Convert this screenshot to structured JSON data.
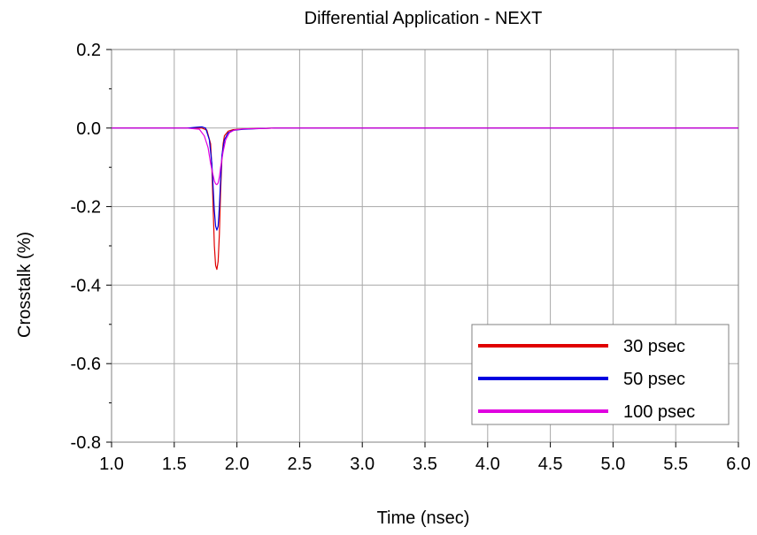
{
  "chart_data": {
    "type": "line",
    "title": "Differential Application - NEXT",
    "xlabel": "Time (nsec)",
    "ylabel": "Crosstalk (%)",
    "xlim": [
      1.0,
      6.0
    ],
    "ylim": [
      -0.8,
      0.2
    ],
    "xticks": [
      "1.0",
      "1.5",
      "2.0",
      "2.5",
      "3.0",
      "3.5",
      "4.0",
      "4.5",
      "5.0",
      "5.5",
      "6.0"
    ],
    "yticks": [
      "0.2",
      "0.0",
      "-0.2",
      "-0.4",
      "-0.6",
      "-0.8"
    ],
    "grid": true,
    "legend_position": "bottom-right",
    "series": [
      {
        "name": "30 psec",
        "color": "#e00000",
        "x": [
          1.0,
          1.6,
          1.68,
          1.72,
          1.76,
          1.79,
          1.8,
          1.81,
          1.82,
          1.83,
          1.84,
          1.85,
          1.86,
          1.87,
          1.88,
          1.89,
          1.9,
          1.93,
          1.97,
          2.05,
          2.2,
          2.3,
          6.0
        ],
        "y": [
          0.0,
          0.0,
          0.0,
          0.0,
          -0.005,
          -0.04,
          -0.1,
          -0.2,
          -0.3,
          -0.35,
          -0.36,
          -0.34,
          -0.27,
          -0.16,
          -0.08,
          -0.04,
          -0.02,
          -0.008,
          -0.004,
          -0.002,
          -0.001,
          0.0,
          0.0
        ]
      },
      {
        "name": "50 psec",
        "color": "#0000e0",
        "x": [
          1.0,
          1.6,
          1.68,
          1.72,
          1.75,
          1.78,
          1.8,
          1.81,
          1.82,
          1.83,
          1.84,
          1.85,
          1.86,
          1.87,
          1.88,
          1.9,
          1.93,
          1.97,
          2.05,
          2.2,
          2.3,
          6.0
        ],
        "y": [
          0.0,
          0.0,
          0.002,
          0.003,
          0.0,
          -0.03,
          -0.09,
          -0.15,
          -0.21,
          -0.25,
          -0.26,
          -0.25,
          -0.2,
          -0.13,
          -0.07,
          -0.03,
          -0.012,
          -0.006,
          -0.003,
          -0.001,
          0.0,
          0.0
        ]
      },
      {
        "name": "100 psec",
        "color": "#e000e0",
        "x": [
          1.0,
          1.6,
          1.7,
          1.74,
          1.77,
          1.79,
          1.81,
          1.82,
          1.83,
          1.84,
          1.85,
          1.86,
          1.87,
          1.89,
          1.91,
          1.94,
          1.98,
          2.05,
          2.2,
          2.3,
          6.0
        ],
        "y": [
          0.0,
          0.0,
          -0.003,
          -0.02,
          -0.05,
          -0.09,
          -0.12,
          -0.135,
          -0.142,
          -0.144,
          -0.14,
          -0.125,
          -0.1,
          -0.06,
          -0.03,
          -0.012,
          -0.005,
          -0.002,
          -0.001,
          0.0,
          0.0
        ]
      }
    ]
  }
}
